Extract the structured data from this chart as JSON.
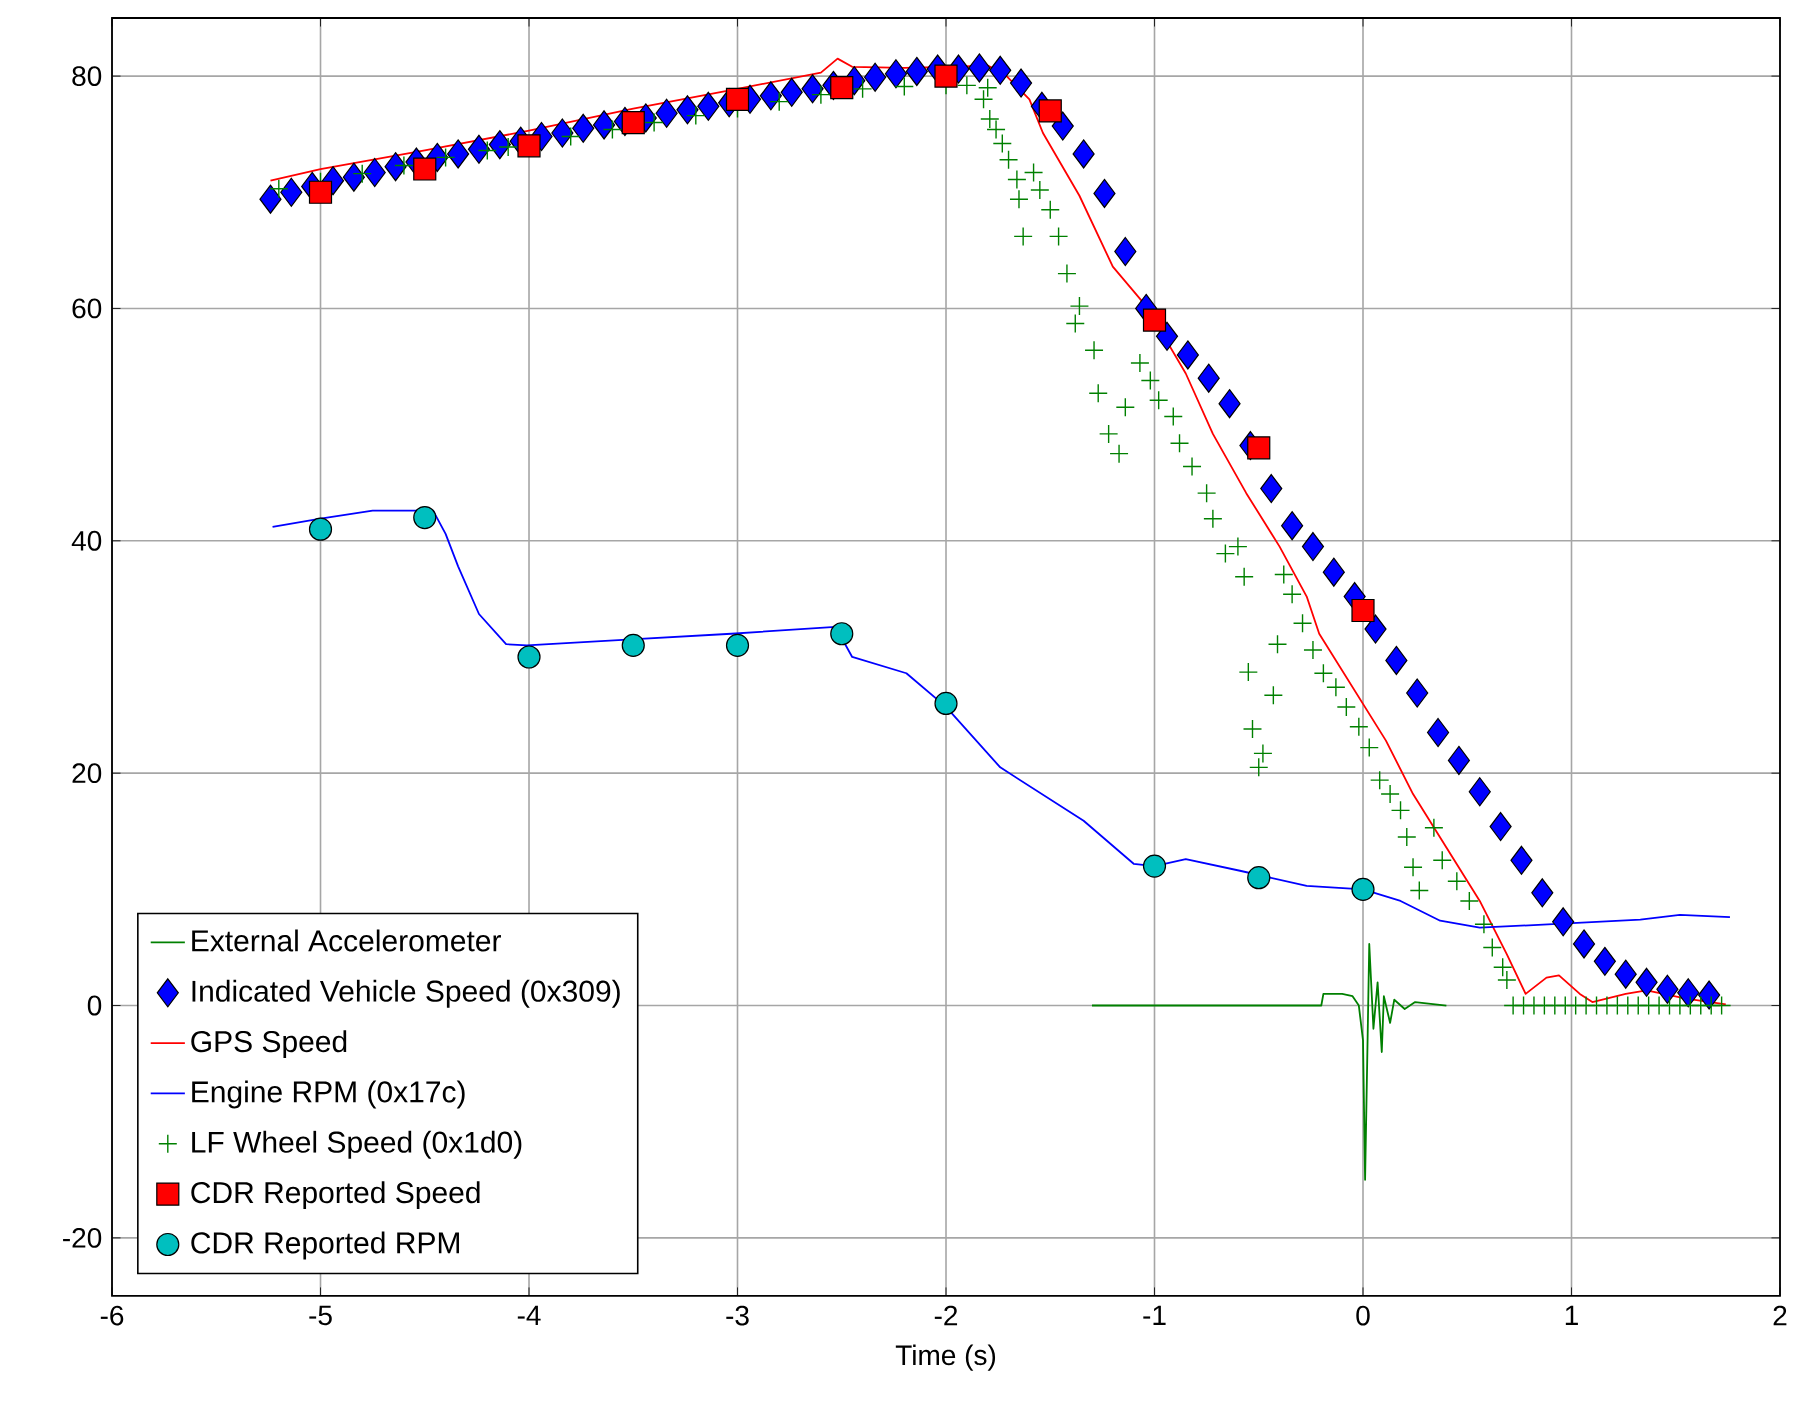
{
  "chart_data": {
    "type": "line",
    "xlabel": "Time (s)",
    "xlim": [
      -6,
      2
    ],
    "ylim": [
      -25,
      85
    ],
    "xticks": [
      -6,
      -5,
      -4,
      -3,
      -2,
      -1,
      0,
      1,
      2
    ],
    "yticks": [
      -20,
      0,
      20,
      40,
      60,
      80
    ],
    "grid": true,
    "legend": "bottom left",
    "series": [
      {
        "name": "External Accelerometer",
        "color": "#008000",
        "x": [
          -1.3,
          -0.2,
          -0.19,
          -0.1,
          -0.05,
          -0.02,
          0.0,
          0.01,
          0.02,
          0.03,
          0.05,
          0.07,
          0.09,
          0.1,
          0.13,
          0.15,
          0.2,
          0.25,
          0.4
        ],
        "values": [
          0,
          0,
          1,
          1,
          0.8,
          0,
          -3,
          -15,
          -5,
          5.3,
          -2,
          2,
          -4,
          0.8,
          -1.5,
          0.5,
          -0.3,
          0.3,
          0
        ]
      },
      {
        "name": "Indicated Vehicle Speed (0x309)",
        "type": "scatter",
        "marker": "diamond",
        "color": "#0000ff",
        "x": [
          -5.24,
          -5.14,
          -5.04,
          -4.94,
          -4.84,
          -4.74,
          -4.64,
          -4.54,
          -4.44,
          -4.34,
          -4.24,
          -4.14,
          -4.04,
          -3.94,
          -3.84,
          -3.74,
          -3.64,
          -3.54,
          -3.44,
          -3.34,
          -3.24,
          -3.14,
          -3.04,
          -2.94,
          -2.84,
          -2.74,
          -2.64,
          -2.54,
          -2.44,
          -2.34,
          -2.24,
          -2.14,
          -2.04,
          -1.94,
          -1.84,
          -1.74,
          -1.64,
          -1.54,
          -1.44,
          -1.34,
          -1.24,
          -1.14,
          -1.04,
          -0.94,
          -0.84,
          -0.74,
          -0.64,
          -0.54,
          -0.44,
          -0.34,
          -0.24,
          -0.14,
          -0.04,
          0.06,
          0.16,
          0.26,
          0.36,
          0.46,
          0.56,
          0.66,
          0.76,
          0.86,
          0.96,
          1.06,
          1.16,
          1.26,
          1.36,
          1.46,
          1.56,
          1.66
        ],
        "values": [
          69.4,
          70.0,
          70.5,
          71.0,
          71.3,
          71.7,
          72.2,
          72.6,
          73.0,
          73.3,
          73.7,
          74.1,
          74.4,
          74.8,
          75.1,
          75.5,
          75.8,
          76.1,
          76.4,
          76.8,
          77.1,
          77.4,
          77.7,
          78.0,
          78.3,
          78.6,
          78.9,
          79.2,
          79.6,
          79.9,
          80.2,
          80.4,
          80.6,
          80.6,
          80.7,
          80.5,
          79.4,
          77.4,
          75.7,
          73.3,
          69.9,
          64.9,
          60.0,
          57.6,
          56.0,
          54.0,
          51.8,
          48.2,
          44.5,
          41.3,
          39.5,
          37.3,
          35.2,
          32.4,
          29.7,
          26.9,
          23.5,
          21.1,
          18.4,
          15.4,
          12.5,
          9.7,
          7.2,
          5.3,
          3.8,
          2.7,
          2.0,
          1.4,
          1.1,
          0.9
        ]
      },
      {
        "name": "GPS Speed",
        "color": "#ff0000",
        "x": [
          -5.24,
          -5.0,
          -4.5,
          -4.0,
          -3.5,
          -3.0,
          -2.6,
          -2.52,
          -2.45,
          -2.2,
          -2.0,
          -1.8,
          -1.72,
          -1.6,
          -1.535,
          -1.36,
          -1.2,
          -1.04,
          -0.85,
          -0.72,
          -0.56,
          -0.4,
          -0.27,
          -0.21,
          -0.05,
          0.11,
          0.24,
          0.4,
          0.56,
          0.69,
          0.78,
          0.88,
          0.94,
          1.04,
          1.1,
          1.26,
          1.36,
          1.55,
          1.74
        ],
        "values": [
          71.0,
          72.0,
          73.6,
          75.3,
          77.2,
          78.9,
          80.3,
          81.5,
          80.8,
          80.7,
          80.8,
          80.9,
          80.2,
          78.0,
          75.1,
          69.7,
          63.6,
          60.2,
          54.4,
          49.2,
          44.1,
          39.5,
          35.2,
          32.0,
          27.4,
          22.8,
          18.2,
          13.6,
          9.0,
          4.4,
          1.0,
          2.4,
          2.6,
          1.0,
          0.3,
          1.0,
          1.3,
          0.6,
          0.1
        ]
      },
      {
        "name": "Engine RPM (0x17c)",
        "color": "#0000ff",
        "x": [
          -5.23,
          -5.0,
          -4.75,
          -4.46,
          -4.4,
          -4.34,
          -4.24,
          -4.11,
          -4.01,
          -3.53,
          -3.03,
          -2.53,
          -2.45,
          -2.19,
          -2.0,
          -1.74,
          -1.34,
          -1.1,
          -1.0,
          -0.85,
          -0.59,
          -0.27,
          0.0,
          0.18,
          0.37,
          0.56,
          0.91,
          1.33,
          1.52,
          1.76
        ],
        "values": [
          41.2,
          41.9,
          42.6,
          42.6,
          40.6,
          37.8,
          33.7,
          31.1,
          31.0,
          31.5,
          32.0,
          32.6,
          30.0,
          28.6,
          25.7,
          20.5,
          15.9,
          12.2,
          12.0,
          12.6,
          11.6,
          10.3,
          10.0,
          9.0,
          7.3,
          6.7,
          7.0,
          7.4,
          7.8,
          7.6
        ]
      },
      {
        "name": "LF Wheel Speed (0x1d0)",
        "type": "scatter",
        "marker": "cross",
        "color": "#008000",
        "x": [
          -5.2,
          -5.0,
          -4.8,
          -4.6,
          -4.4,
          -4.2,
          -4.1,
          -3.8,
          -3.6,
          -3.4,
          -3.2,
          -3.0,
          -2.8,
          -2.6,
          -2.4,
          -2.2,
          -2.0,
          -1.9,
          -1.8,
          -1.82,
          -1.79,
          -1.76,
          -1.73,
          -1.7,
          -1.66,
          -1.58,
          -1.65,
          -1.55,
          -1.5,
          -1.46,
          -1.63,
          -1.42,
          -1.36,
          -1.38,
          -1.29,
          -1.27,
          -1.22,
          -1.17,
          -1.14,
          -1.07,
          -1.02,
          -0.98,
          -0.91,
          -0.88,
          -0.82,
          -0.75,
          -0.72,
          -0.66,
          -0.6,
          -0.57,
          -0.38,
          -0.41,
          -0.55,
          -0.43,
          -0.53,
          -0.48,
          -0.5,
          -0.34,
          -0.29,
          -0.24,
          -0.19,
          -0.13,
          -0.08,
          -0.02,
          0.03,
          0.08,
          0.13,
          0.18,
          0.21,
          0.24,
          0.27,
          0.34,
          0.38,
          0.45,
          0.51,
          0.58,
          0.62,
          0.67,
          0.69,
          0.72,
          0.77,
          0.82,
          0.87,
          0.92,
          0.97,
          1.02,
          1.07,
          1.12,
          1.17,
          1.22,
          1.27,
          1.32,
          1.37,
          1.42,
          1.47,
          1.52,
          1.57,
          1.62,
          1.67,
          1.72
        ],
        "values": [
          70.3,
          70.9,
          71.6,
          72.3,
          73.0,
          73.6,
          73.9,
          74.8,
          75.4,
          76.0,
          76.6,
          77.2,
          77.8,
          78.4,
          78.9,
          79.1,
          79.2,
          79.2,
          79.0,
          78.0,
          76.3,
          75.4,
          74.2,
          72.8,
          71.1,
          71.7,
          69.4,
          70.2,
          68.5,
          66.2,
          66.2,
          63.0,
          60.2,
          58.7,
          56.4,
          52.7,
          49.2,
          47.5,
          51.5,
          55.3,
          53.8,
          52.1,
          50.7,
          48.4,
          46.4,
          44.1,
          41.9,
          38.9,
          39.5,
          36.9,
          37.1,
          31.1,
          28.7,
          26.7,
          23.8,
          21.7,
          20.5,
          35.4,
          32.9,
          30.6,
          28.6,
          27.4,
          25.7,
          24.0,
          22.2,
          19.4,
          18.2,
          16.8,
          14.5,
          11.9,
          9.9,
          15.3,
          12.5,
          10.7,
          9.0,
          7.0,
          5.0,
          3.3,
          2.2,
          0,
          0,
          0,
          0,
          0,
          0,
          0,
          0,
          0,
          0,
          0,
          0,
          0,
          0,
          0,
          0,
          0,
          0,
          0,
          0,
          0
        ]
      },
      {
        "name": "CDR Reported Speed",
        "type": "scatter",
        "marker": "square",
        "color": "#ff0000",
        "x": [
          -5,
          -4.5,
          -4,
          -3.5,
          -3,
          -2.5,
          -2,
          -1.5,
          -1,
          -0.5,
          0
        ],
        "values": [
          70,
          72,
          74,
          76,
          78,
          79,
          80,
          77,
          59,
          48,
          34
        ]
      },
      {
        "name": "CDR Reported RPM",
        "type": "scatter",
        "marker": "circle",
        "color": "#00bfbf",
        "x": [
          -5,
          -4.5,
          -4,
          -3.5,
          -3,
          -2.5,
          -2,
          -1,
          -0.5,
          0
        ],
        "values": [
          41,
          42,
          30,
          31,
          31,
          32,
          26,
          12,
          11,
          10
        ]
      }
    ]
  }
}
